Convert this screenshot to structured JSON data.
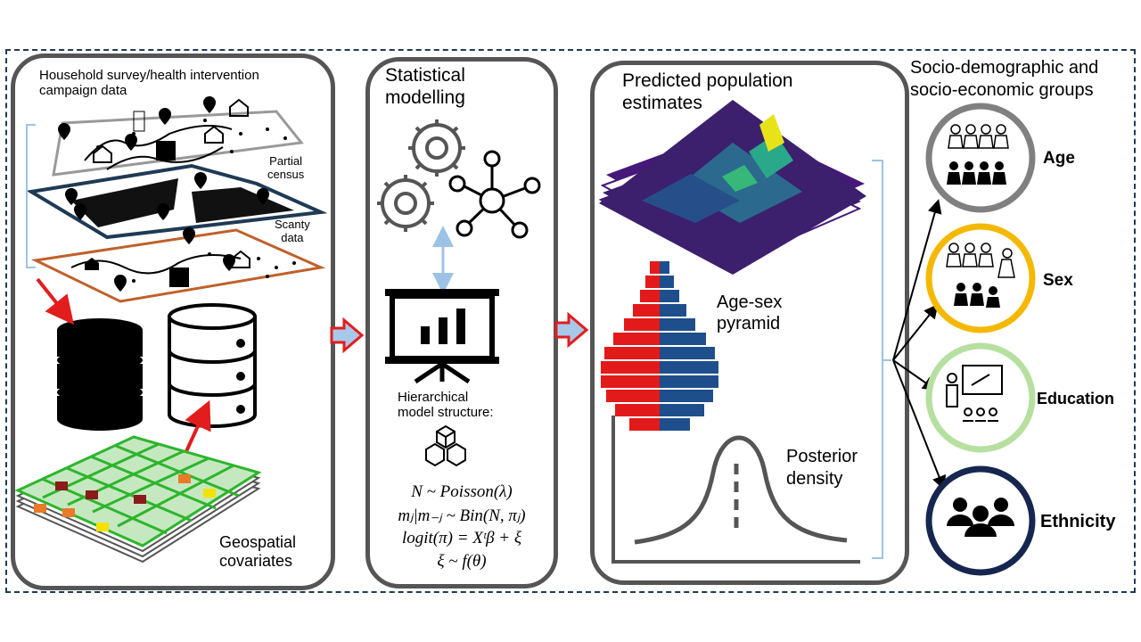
{
  "panel1": {
    "title_line1": "Household survey/health intervention",
    "title_line2": "campaign data",
    "partial_line1": "Partial",
    "partial_line2": "census",
    "scanty_line1": "Scanty",
    "scanty_line2": "data",
    "geo_line1": "Geospatial",
    "geo_line2": "covariates"
  },
  "panel2": {
    "title_line1": "Statistical",
    "title_line2": "modelling",
    "hier_line1": "Hierarchical",
    "hier_line2": "model structure:",
    "eq1": "N ~ Poisson(λ)",
    "eq2": "mⱼ|m₋ⱼ ~ Bin(N, πⱼ)",
    "eq3": "logit(π) = Xᵗβ + ξ",
    "eq4": "ξ ~ f(θ)"
  },
  "panel3": {
    "title_line1": "Predicted population",
    "title_line2": "estimates",
    "pyramid_line1": "Age-sex",
    "pyramid_line2": "pyramid",
    "posterior_line1": "Posterior",
    "posterior_line2": "density"
  },
  "panel4": {
    "title_line1": "Socio-demographic and",
    "title_line2": "socio-economic groups",
    "groups": [
      {
        "label": "Age",
        "ring": "#808080"
      },
      {
        "label": "Sex",
        "ring": "#f5b800"
      },
      {
        "label": "Education",
        "ring": "#b6dfa0"
      },
      {
        "label": "Ethnicity",
        "ring": "#16264f"
      }
    ]
  },
  "colors": {
    "frame": "#1f3a55",
    "panel_border": "#555555",
    "arrow_red": "#e11d1d",
    "arrow_fill": "#a8c8ea",
    "male": "#1f4e8c",
    "female": "#e31a1a",
    "bracket": "#9cc3e6"
  }
}
